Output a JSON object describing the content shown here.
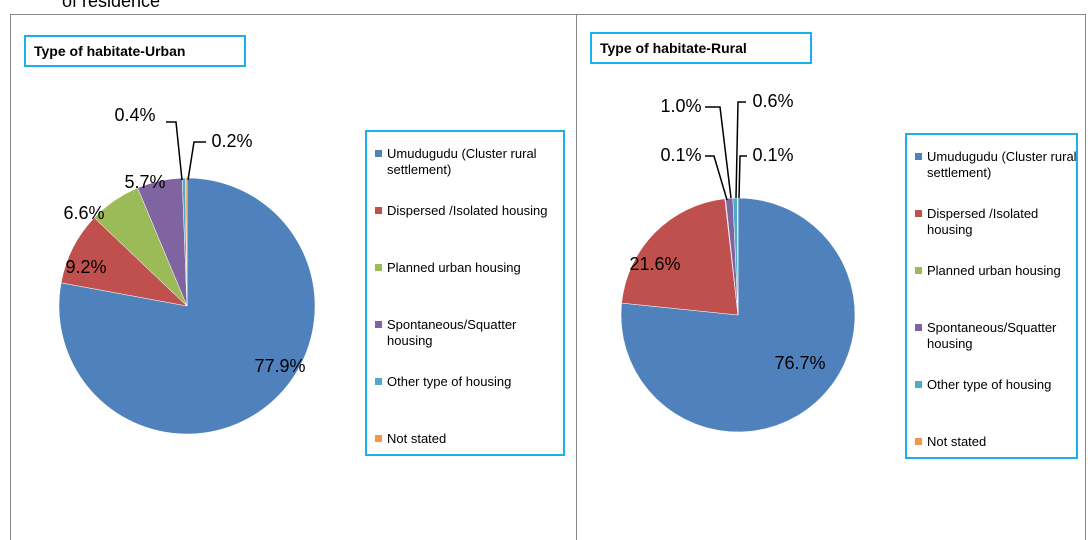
{
  "caption": "of residence",
  "chart_data": [
    {
      "type": "pie",
      "title": "Type of habitate-Urban",
      "categories": [
        "Umudugudu (Cluster rural settlement)",
        "Dispersed /Isolated housing",
        "Planned urban housing",
        "Spontaneous/Squatter housing",
        "Other type of housing",
        "Not stated"
      ],
      "values": [
        77.9,
        9.2,
        6.6,
        5.7,
        0.4,
        0.2
      ],
      "value_labels": [
        "77.9%",
        "9.2%",
        "6.6%",
        "5.7%",
        "0.4%",
        "0.2%"
      ],
      "colors": [
        "#4f81bd",
        "#c0504d",
        "#9bbb59",
        "#8064a2",
        "#4bacc6",
        "#f79646"
      ]
    },
    {
      "type": "pie",
      "title": "Type of habitate-Rural",
      "categories": [
        "Umudugudu (Cluster rural settlement)",
        "Dispersed /Isolated housing",
        "Planned urban housing",
        "Spontaneous/Squatter housing",
        "Other type of housing",
        "Not stated"
      ],
      "values": [
        76.7,
        21.6,
        0.1,
        1.0,
        0.6,
        0.1
      ],
      "value_labels": [
        "76.7%",
        "21.6%",
        "0.1%",
        "1.0%",
        "0.6%",
        "0.1%"
      ],
      "colors": [
        "#4f81bd",
        "#c0504d",
        "#9bbb59",
        "#8064a2",
        "#4bacc6",
        "#f79646"
      ]
    }
  ]
}
